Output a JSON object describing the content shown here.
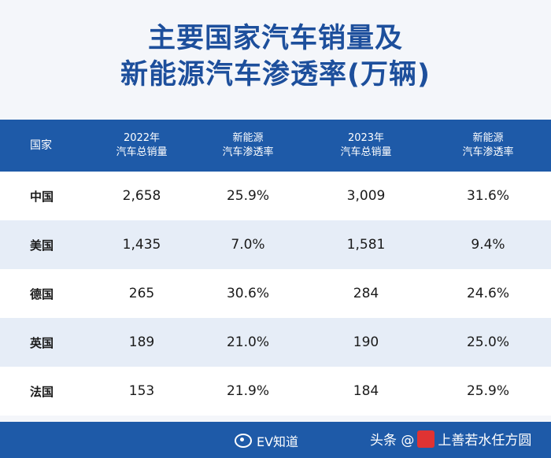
{
  "title": {
    "line1": "主要国家汽车销量及",
    "line2": "新能源汽车渗透率(万辆)"
  },
  "chart_data": {
    "type": "table",
    "columns": [
      {
        "line1": "国家",
        "line2": ""
      },
      {
        "line1": "2022年",
        "line2": "汽车总销量"
      },
      {
        "line1": "新能源",
        "line2": "汽车渗透率"
      },
      {
        "line1": "2023年",
        "line2": "汽车总销量"
      },
      {
        "line1": "新能源",
        "line2": "汽车渗透率"
      }
    ],
    "rows": [
      [
        "中国",
        "2,658",
        "25.9%",
        "3,009",
        "31.6%"
      ],
      [
        "美国",
        "1,435",
        "7.0%",
        "1,581",
        "9.4%"
      ],
      [
        "德国",
        "265",
        "30.6%",
        "284",
        "24.6%"
      ],
      [
        "英国",
        "189",
        "21.0%",
        "190",
        "25.0%"
      ],
      [
        "法国",
        "153",
        "21.9%",
        "184",
        "25.9%"
      ]
    ]
  },
  "footer": {
    "weibo_label": "EV知道",
    "toutiao_label": "头条 @",
    "toutiao_account": "上善若水任方圆"
  },
  "colors": {
    "title": "#1d4f9c",
    "header_bg": "#1e5aa8",
    "row_alt": "#e6edf7"
  }
}
